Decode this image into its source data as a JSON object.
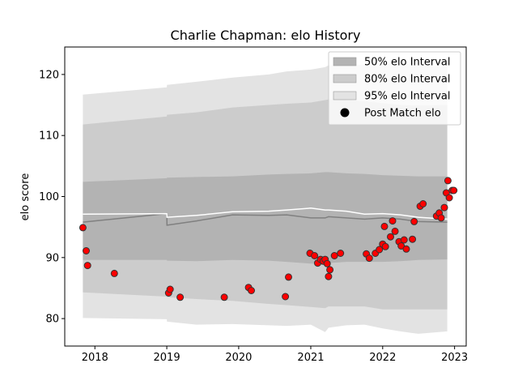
{
  "chart_data": {
    "type": "area",
    "title": "Charlie Chapman: elo History",
    "xlabel": "",
    "ylabel": "elo score",
    "xlim": [
      "2017-08-01",
      "2023-03-01"
    ],
    "ylim": [
      75.5,
      124.5
    ],
    "x_ticks": [
      "2018",
      "2019",
      "2020",
      "2021",
      "2022",
      "2023"
    ],
    "y_ticks": [
      80,
      90,
      100,
      110,
      120
    ],
    "legend_position": "top-right",
    "legend": [
      {
        "label": "50% elo Interval",
        "kind": "band",
        "color": "#b3b3b3"
      },
      {
        "label": "80% elo Interval",
        "kind": "band",
        "color": "#cccccc"
      },
      {
        "label": "95% elo Interval",
        "kind": "band",
        "color": "#e3e3e3"
      },
      {
        "label": "Post Match elo",
        "kind": "point",
        "color": "#000000"
      }
    ],
    "colors": {
      "band50": "#b3b3b3",
      "band80": "#cccccc",
      "band95": "#e3e3e3",
      "median_line": "#808080",
      "mean_line": "#ffffff",
      "point_fill": "#ff0000",
      "point_edge": "#333333"
    },
    "bands": {
      "x": [
        "2017-11-01",
        "2019-01-01",
        "2019-01-02",
        "2019-06-01",
        "2019-12-01",
        "2020-06-01",
        "2020-09-01",
        "2021-01-01",
        "2021-03-15",
        "2021-04-01",
        "2021-07-01",
        "2021-10-01",
        "2022-01-01",
        "2022-04-01",
        "2022-07-01",
        "2022-11-25"
      ],
      "p95_high": [
        116.7,
        117.9,
        118.3,
        118.8,
        119.5,
        120.0,
        120.5,
        120.8,
        121.2,
        121.5,
        121.5,
        121.6,
        121.7,
        121.8,
        121.5,
        121.3
      ],
      "p80_high": [
        111.8,
        113.1,
        113.4,
        113.8,
        114.6,
        115.0,
        115.2,
        115.4,
        115.8,
        115.9,
        115.8,
        115.6,
        115.3,
        115.0,
        114.9,
        115.0
      ],
      "p50_high": [
        102.4,
        103.0,
        103.1,
        103.2,
        103.3,
        103.6,
        103.7,
        103.8,
        104.0,
        104.0,
        103.8,
        103.7,
        103.5,
        103.4,
        103.3,
        103.3
      ],
      "median": [
        95.8,
        97.2,
        95.3,
        96.0,
        97.0,
        96.9,
        97.0,
        96.5,
        96.5,
        96.7,
        96.5,
        96.3,
        96.5,
        96.3,
        95.9,
        95.8
      ],
      "mean": [
        97.1,
        97.2,
        96.6,
        96.9,
        97.5,
        97.6,
        97.8,
        98.1,
        97.8,
        97.8,
        97.6,
        97.1,
        97.2,
        97.0,
        96.6,
        96.3
      ],
      "p50_low": [
        89.6,
        89.6,
        89.5,
        89.4,
        89.6,
        89.5,
        89.3,
        89.0,
        88.9,
        89.1,
        89.3,
        89.3,
        89.3,
        89.4,
        89.6,
        89.7
      ],
      "p80_low": [
        84.3,
        83.6,
        83.5,
        83.2,
        82.9,
        82.4,
        82.2,
        81.9,
        81.7,
        82.0,
        82.0,
        82.0,
        81.5,
        81.5,
        81.5,
        81.5
      ],
      "p95_low": [
        80.1,
        79.9,
        79.5,
        79.0,
        79.1,
        78.9,
        78.8,
        79.0,
        77.8,
        78.5,
        78.9,
        79.0,
        78.4,
        77.9,
        77.5,
        77.9
      ]
    },
    "points": [
      [
        "2017-11-01",
        94.9
      ],
      [
        "2017-11-18",
        91.1
      ],
      [
        "2017-11-25",
        88.7
      ],
      [
        "2018-04-10",
        87.4
      ],
      [
        "2019-01-10",
        84.2
      ],
      [
        "2019-01-18",
        84.8
      ],
      [
        "2019-03-10",
        83.5
      ],
      [
        "2019-10-20",
        83.5
      ],
      [
        "2020-02-20",
        85.1
      ],
      [
        "2020-03-05",
        84.6
      ],
      [
        "2020-08-25",
        83.6
      ],
      [
        "2020-09-10",
        86.8
      ],
      [
        "2020-12-28",
        90.7
      ],
      [
        "2021-01-20",
        90.3
      ],
      [
        "2021-02-05",
        89.1
      ],
      [
        "2021-02-20",
        89.7
      ],
      [
        "2021-03-05",
        89.4
      ],
      [
        "2021-03-15",
        89.7
      ],
      [
        "2021-03-25",
        89.0
      ],
      [
        "2021-04-01",
        86.9
      ],
      [
        "2021-04-08",
        88.0
      ],
      [
        "2021-05-01",
        90.3
      ],
      [
        "2021-06-01",
        90.7
      ],
      [
        "2021-10-10",
        90.6
      ],
      [
        "2021-10-25",
        89.9
      ],
      [
        "2021-11-25",
        90.7
      ],
      [
        "2021-12-15",
        91.3
      ],
      [
        "2022-01-01",
        92.2
      ],
      [
        "2022-01-15",
        91.8
      ],
      [
        "2022-01-10",
        95.1
      ],
      [
        "2022-02-10",
        93.4
      ],
      [
        "2022-02-20",
        96.0
      ],
      [
        "2022-03-05",
        94.3
      ],
      [
        "2022-03-25",
        92.6
      ],
      [
        "2022-04-05",
        91.9
      ],
      [
        "2022-04-20",
        92.9
      ],
      [
        "2022-05-01",
        91.4
      ],
      [
        "2022-06-01",
        93.0
      ],
      [
        "2022-06-10",
        95.9
      ],
      [
        "2022-07-10",
        98.4
      ],
      [
        "2022-07-25",
        98.8
      ],
      [
        "2022-10-01",
        96.8
      ],
      [
        "2022-10-15",
        97.3
      ],
      [
        "2022-10-25",
        96.5
      ],
      [
        "2022-11-10",
        98.2
      ],
      [
        "2022-11-20",
        100.6
      ],
      [
        "2022-11-28",
        102.6
      ],
      [
        "2022-12-05",
        99.8
      ],
      [
        "2022-12-20",
        101.0
      ],
      [
        "2022-12-28",
        101.0
      ]
    ]
  }
}
